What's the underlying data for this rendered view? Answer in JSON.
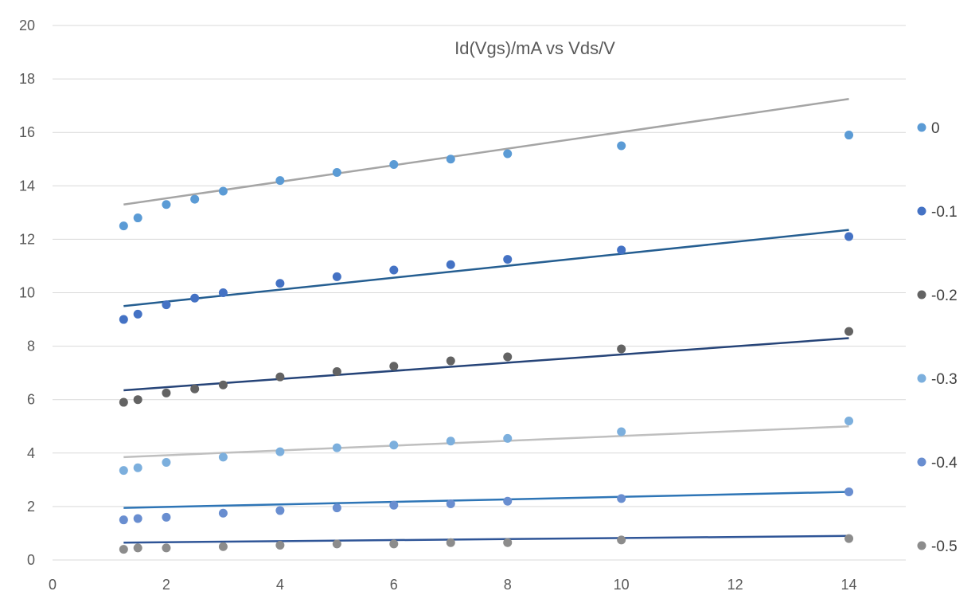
{
  "chart_data": {
    "type": "scatter",
    "title": "Id(Vgs)/mA vs Vds/V",
    "xlim": [
      0,
      15
    ],
    "ylim": [
      0,
      20
    ],
    "x_ticks": [
      0,
      2,
      4,
      6,
      8,
      10,
      12,
      14
    ],
    "y_ticks": [
      0,
      2,
      4,
      6,
      8,
      10,
      12,
      14,
      16,
      18,
      20
    ],
    "grid": "horizontal",
    "legend_position": "right",
    "x": [
      1.25,
      1.5,
      2,
      2.5,
      3,
      4,
      5,
      6,
      7,
      8,
      10,
      14
    ],
    "series": [
      {
        "name": "0",
        "color": "#5B9BD5",
        "trend_color": "#A5A5A5",
        "values": [
          12.5,
          12.8,
          13.3,
          13.5,
          13.8,
          14.2,
          14.5,
          14.8,
          15.0,
          15.2,
          15.5,
          15.9
        ],
        "trend": [
          13.3,
          17.25
        ]
      },
      {
        "name": "-0.1",
        "color": "#4472C4",
        "trend_color": "#255E91",
        "values": [
          9.0,
          9.2,
          9.55,
          9.8,
          10.0,
          10.35,
          10.6,
          10.85,
          11.05,
          11.25,
          11.6,
          12.1
        ],
        "trend": [
          9.5,
          12.35
        ]
      },
      {
        "name": "-0.2",
        "color": "#636363",
        "trend_color": "#264478",
        "values": [
          5.9,
          6.0,
          6.25,
          6.4,
          6.55,
          6.85,
          7.05,
          7.25,
          7.45,
          7.6,
          7.9,
          8.55
        ],
        "trend": [
          6.35,
          8.3
        ]
      },
      {
        "name": "-0.3",
        "color": "#7CAFDD",
        "trend_color": "#BFBFBF",
        "values": [
          3.35,
          3.45,
          3.65,
          null,
          3.85,
          4.05,
          4.2,
          4.3,
          4.45,
          4.55,
          4.8,
          5.2
        ],
        "trend": [
          3.85,
          5.0
        ]
      },
      {
        "name": "-0.4",
        "color": "#698ED0",
        "trend_color": "#2E75B6",
        "values": [
          1.5,
          1.55,
          1.6,
          null,
          1.75,
          1.85,
          1.95,
          2.05,
          2.1,
          2.2,
          2.3,
          2.55
        ],
        "trend": [
          1.95,
          2.55
        ]
      },
      {
        "name": "-0.5",
        "color": "#8C8C8C",
        "trend_color": "#2F5597",
        "values": [
          0.4,
          0.45,
          0.45,
          null,
          0.5,
          0.55,
          0.6,
          0.6,
          0.65,
          0.65,
          0.75,
          0.8
        ],
        "trend": [
          0.65,
          0.9
        ]
      }
    ]
  }
}
